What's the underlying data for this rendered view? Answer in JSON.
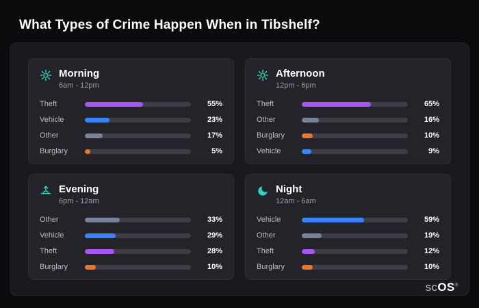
{
  "page": {
    "title": "What Types of Crime Happen When in Tibshelf?"
  },
  "brand": {
    "prefix": "sc",
    "suffix": "OS",
    "mark": "®"
  },
  "colors": {
    "background": "#0b0b0d",
    "panel": "#19191d",
    "card": "#232329",
    "track": "#3d3d45",
    "icon_accent": "#2dd4bf"
  },
  "category_colors": {
    "Theft": "#a855f7",
    "Vehicle": "#3b82f6",
    "Other": "#77829b",
    "Burglary": "#e8762d"
  },
  "chart_data": [
    {
      "type": "bar",
      "title": "Morning",
      "subtitle": "6am - 12pm",
      "icon": "sun-icon",
      "unit": "%",
      "xlim": [
        0,
        100
      ],
      "categories": [
        "Theft",
        "Vehicle",
        "Other",
        "Burglary"
      ],
      "values": [
        55,
        23,
        17,
        5
      ]
    },
    {
      "type": "bar",
      "title": "Afternoon",
      "subtitle": "12pm - 6pm",
      "icon": "sun-icon",
      "unit": "%",
      "xlim": [
        0,
        100
      ],
      "categories": [
        "Theft",
        "Other",
        "Burglary",
        "Vehicle"
      ],
      "values": [
        65,
        16,
        10,
        9
      ]
    },
    {
      "type": "bar",
      "title": "Evening",
      "subtitle": "6pm - 12am",
      "icon": "sunset-icon",
      "unit": "%",
      "xlim": [
        0,
        100
      ],
      "categories": [
        "Other",
        "Vehicle",
        "Theft",
        "Burglary"
      ],
      "values": [
        33,
        29,
        28,
        10
      ]
    },
    {
      "type": "bar",
      "title": "Night",
      "subtitle": "12am - 6am",
      "icon": "moon-icon",
      "unit": "%",
      "xlim": [
        0,
        100
      ],
      "categories": [
        "Vehicle",
        "Other",
        "Theft",
        "Burglary"
      ],
      "values": [
        59,
        19,
        12,
        10
      ]
    }
  ]
}
